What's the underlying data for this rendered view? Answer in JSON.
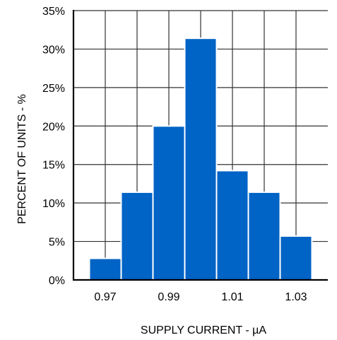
{
  "chart_data": {
    "type": "bar",
    "title": "",
    "xlabel": "SUPPLY CURRENT - µA",
    "ylabel": "PERCENT OF UNITS - %",
    "categories": [
      "0.97",
      "0.98",
      "0.99",
      "1.00",
      "1.01",
      "1.02",
      "1.03"
    ],
    "values": [
      2.8,
      11.4,
      20.0,
      31.4,
      14.2,
      11.4,
      5.7
    ],
    "x_ticks": [
      "0.97",
      "0.99",
      "1.01",
      "1.03"
    ],
    "y_ticks": [
      "0%",
      "5%",
      "10%",
      "15%",
      "20%",
      "25%",
      "30%",
      "35%"
    ],
    "xlim": [
      0.96,
      1.04
    ],
    "ylim": [
      0,
      35
    ],
    "grid": true,
    "bar_color": "#0063C6",
    "grid_color": "#333333"
  }
}
